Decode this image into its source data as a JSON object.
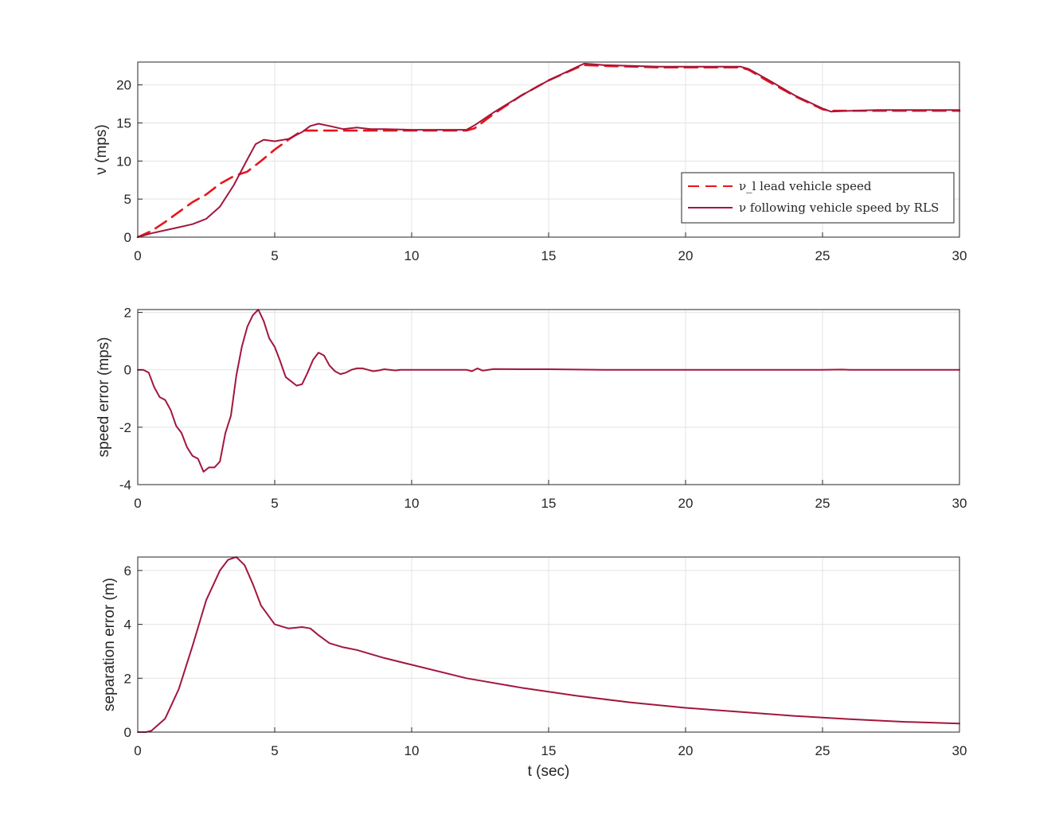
{
  "chart_data": [
    {
      "type": "line",
      "title": "",
      "xlabel": "",
      "ylabel": "ν (mps)",
      "xlim": [
        0,
        30
      ],
      "ylim": [
        0,
        23
      ],
      "xticks": [
        0,
        5,
        10,
        15,
        20,
        25,
        30
      ],
      "yticks": [
        0,
        5,
        10,
        15,
        20
      ],
      "grid": true,
      "legend_position": "lower-right",
      "series": [
        {
          "name": "ν_l lead vehicle speed",
          "color": "#e8141a",
          "style": "dashed",
          "x": [
            0,
            0.5,
            1,
            1.5,
            2,
            2.5,
            3,
            3.5,
            4,
            4.5,
            5,
            5.5,
            6,
            6.5,
            7,
            8,
            9,
            10,
            11,
            12,
            12.3,
            13,
            14,
            15,
            16,
            16.3,
            17,
            18,
            19,
            20,
            21,
            22,
            22.3,
            23,
            24,
            25,
            25.3,
            26,
            27,
            28,
            29,
            30
          ],
          "y": [
            0,
            0.8,
            2,
            3.3,
            4.6,
            5.6,
            7,
            8,
            8.6,
            10,
            11.5,
            12.8,
            14,
            14,
            14,
            14,
            14,
            14,
            14,
            14,
            14.3,
            16.2,
            18.6,
            20.6,
            22.2,
            22.6,
            22.5,
            22.4,
            22.3,
            22.3,
            22.3,
            22.3,
            22,
            20.5,
            18.5,
            16.8,
            16.6,
            16.6,
            16.6,
            16.6,
            16.6,
            16.6
          ]
        },
        {
          "name": "ν following vehicle speed by RLS",
          "color": "#a2173d",
          "style": "solid",
          "x": [
            0,
            0.5,
            1,
            1.5,
            2,
            2.5,
            3,
            3.5,
            4,
            4.3,
            4.6,
            5,
            5.5,
            6,
            6.3,
            6.6,
            7,
            7.5,
            8,
            8.5,
            9,
            10,
            11,
            12,
            12.3,
            13,
            14,
            15,
            16,
            16.3,
            17,
            18,
            19,
            20,
            21,
            22,
            22.3,
            23,
            24,
            25,
            25.3,
            26,
            27,
            28,
            29,
            30
          ],
          "y": [
            0,
            0.5,
            0.9,
            1.3,
            1.7,
            2.4,
            4,
            6.8,
            10.2,
            12.2,
            12.8,
            12.6,
            12.9,
            13.8,
            14.6,
            14.9,
            14.6,
            14.2,
            14.4,
            14.2,
            14.2,
            14.1,
            14.1,
            14.1,
            14.7,
            16.4,
            18.6,
            20.6,
            22.3,
            22.8,
            22.6,
            22.5,
            22.4,
            22.4,
            22.4,
            22.4,
            22.1,
            20.7,
            18.6,
            16.9,
            16.5,
            16.6,
            16.7,
            16.7,
            16.7,
            16.7
          ]
        }
      ]
    },
    {
      "type": "line",
      "title": "",
      "xlabel": "",
      "ylabel": "speed error (mps)",
      "xlim": [
        0,
        30
      ],
      "ylim": [
        -4,
        2.1
      ],
      "xticks": [
        0,
        5,
        10,
        15,
        20,
        25,
        30
      ],
      "yticks": [
        -4,
        -2,
        0,
        2
      ],
      "grid": true,
      "series": [
        {
          "name": "",
          "color": "#a2173d",
          "style": "solid",
          "x": [
            0,
            0.2,
            0.4,
            0.6,
            0.8,
            1.0,
            1.2,
            1.4,
            1.6,
            1.8,
            2.0,
            2.2,
            2.4,
            2.6,
            2.8,
            3.0,
            3.2,
            3.4,
            3.6,
            3.8,
            4.0,
            4.2,
            4.4,
            4.6,
            4.8,
            5.0,
            5.2,
            5.4,
            5.6,
            5.8,
            6.0,
            6.2,
            6.4,
            6.6,
            6.8,
            7.0,
            7.2,
            7.4,
            7.6,
            7.8,
            8.0,
            8.2,
            8.4,
            8.6,
            8.8,
            9.0,
            9.2,
            9.4,
            9.6,
            9.8,
            10,
            11,
            12,
            12.2,
            12.4,
            12.6,
            13,
            14,
            15,
            16,
            17,
            18,
            19,
            20,
            21,
            22,
            23,
            24,
            25,
            25.7,
            26,
            27,
            28,
            29,
            30
          ],
          "y": [
            0,
            0,
            -0.1,
            -0.6,
            -0.95,
            -1.05,
            -1.4,
            -1.95,
            -2.2,
            -2.7,
            -3.0,
            -3.1,
            -3.55,
            -3.4,
            -3.4,
            -3.2,
            -2.2,
            -1.6,
            -0.2,
            0.8,
            1.5,
            1.9,
            2.1,
            1.7,
            1.1,
            0.8,
            0.3,
            -0.25,
            -0.4,
            -0.55,
            -0.5,
            -0.1,
            0.35,
            0.6,
            0.5,
            0.15,
            -0.05,
            -0.15,
            -0.1,
            0.0,
            0.05,
            0.05,
            0.0,
            -0.05,
            -0.02,
            0.02,
            0.0,
            -0.02,
            0.0,
            0.0,
            0.0,
            0.0,
            0.0,
            -0.05,
            0.05,
            -0.03,
            0.03,
            0.02,
            0.02,
            0.01,
            0.0,
            0.0,
            0.0,
            0.0,
            0.0,
            0.0,
            0.0,
            0.0,
            0.0,
            0.01,
            0.0,
            0.0,
            0.0,
            0.0,
            0.0
          ]
        }
      ]
    },
    {
      "type": "line",
      "title": "",
      "xlabel": "t (sec)",
      "ylabel": "separation error (m)",
      "xlim": [
        0,
        30
      ],
      "ylim": [
        0,
        6.5
      ],
      "xticks": [
        0,
        5,
        10,
        15,
        20,
        25,
        30
      ],
      "yticks": [
        0,
        2,
        4,
        6
      ],
      "grid": true,
      "series": [
        {
          "name": "",
          "color": "#a2173d",
          "style": "solid",
          "x": [
            0,
            0.3,
            0.5,
            1,
            1.5,
            2,
            2.5,
            3,
            3.3,
            3.6,
            3.9,
            4.2,
            4.5,
            5,
            5.5,
            6,
            6.3,
            6.6,
            7,
            7.5,
            8,
            9,
            10,
            12,
            14,
            16,
            18,
            20,
            22,
            24,
            26,
            28,
            30
          ],
          "y": [
            0,
            0,
            0.05,
            0.5,
            1.6,
            3.2,
            4.9,
            6.0,
            6.4,
            6.5,
            6.2,
            5.5,
            4.7,
            4.0,
            3.85,
            3.9,
            3.85,
            3.6,
            3.3,
            3.15,
            3.05,
            2.75,
            2.5,
            2.0,
            1.65,
            1.35,
            1.1,
            0.9,
            0.75,
            0.6,
            0.48,
            0.38,
            0.32
          ]
        }
      ]
    }
  ]
}
